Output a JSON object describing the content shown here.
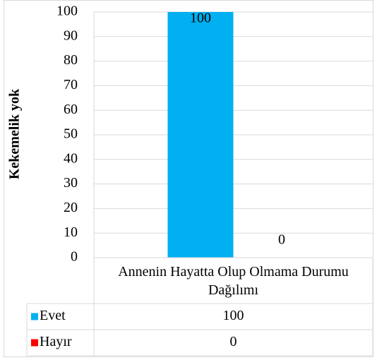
{
  "chart_data": {
    "type": "bar",
    "y_label": "Kekemelik yok",
    "categories": [
      "Annenin Hayatta Olup Olmama Durumu Dağılımı"
    ],
    "series": [
      {
        "name": "Evet",
        "color": "#00B0F0",
        "values": [
          100
        ]
      },
      {
        "name": "Hayır",
        "color": "#FF0000",
        "values": [
          0
        ]
      }
    ],
    "ylim": [
      0,
      100
    ],
    "yticks": [
      0,
      10,
      20,
      30,
      40,
      50,
      60,
      70,
      80,
      90,
      100
    ],
    "grid": true,
    "data_table": true
  }
}
